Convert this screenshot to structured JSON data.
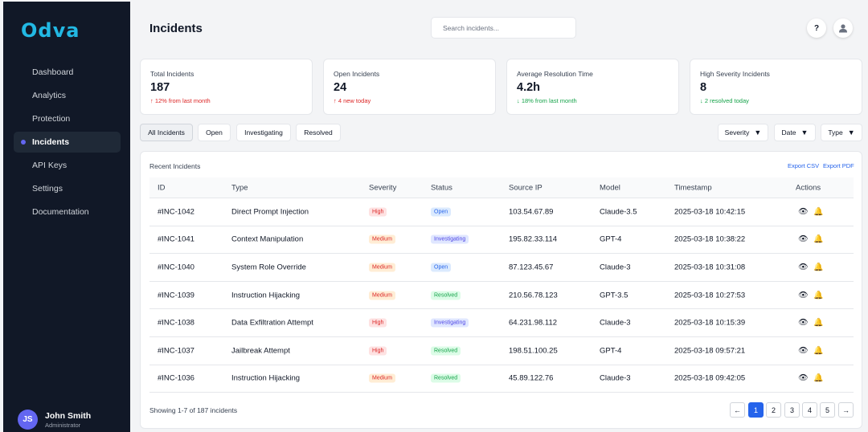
{
  "brand": {
    "logo_text": "Odva"
  },
  "sidebar": {
    "items": [
      {
        "label": "Dashboard"
      },
      {
        "label": "Analytics"
      },
      {
        "label": "Protection"
      },
      {
        "label": "Incidents",
        "active": true
      },
      {
        "label": "API Keys"
      },
      {
        "label": "Settings"
      },
      {
        "label": "Documentation"
      }
    ],
    "user": {
      "initials": "JS",
      "name": "John Smith",
      "role": "Administrator"
    }
  },
  "header": {
    "title": "Incidents",
    "search_placeholder": "Search incidents...",
    "help_label": "?",
    "profile_icon": "user-icon"
  },
  "stats": [
    {
      "label": "Total Incidents",
      "value": "187",
      "trend": "↑ 12% from last month",
      "trend_color": "#dc2626"
    },
    {
      "label": "Open Incidents",
      "value": "24",
      "trend": "↑ 4 new today",
      "trend_color": "#dc2626"
    },
    {
      "label": "Average Resolution Time",
      "value": "4.2h",
      "trend": "↓ 18% from last month",
      "trend_color": "#16a34a"
    },
    {
      "label": "High Severity Incidents",
      "value": "8",
      "trend": "↓ 2 resolved today",
      "trend_color": "#16a34a"
    }
  ],
  "filters": {
    "tabs": [
      {
        "label": "All Incidents",
        "active": true
      },
      {
        "label": "Open"
      },
      {
        "label": "Investigating"
      },
      {
        "label": "Resolved"
      }
    ],
    "dropdowns": [
      {
        "label": "Severity"
      },
      {
        "label": "Date"
      },
      {
        "label": "Type"
      }
    ],
    "caret": "▼"
  },
  "table": {
    "title": "Recent Incidents",
    "export_csv": "Export CSV",
    "export_pdf": "Export PDF",
    "columns": [
      "ID",
      "Type",
      "Severity",
      "Status",
      "Source IP",
      "Model",
      "Timestamp",
      "Actions"
    ],
    "rows": [
      {
        "id": "#INC-1042",
        "type": "Direct Prompt Injection",
        "severity": "High",
        "status": "Open",
        "ip": "103.54.67.89",
        "model": "Claude-3.5",
        "timestamp": "2025-03-18 10:42:15"
      },
      {
        "id": "#INC-1041",
        "type": "Context Manipulation",
        "severity": "Medium",
        "status": "Investigating",
        "ip": "195.82.33.114",
        "model": "GPT-4",
        "timestamp": "2025-03-18 10:38:22"
      },
      {
        "id": "#INC-1040",
        "type": "System Role Override",
        "severity": "Medium",
        "status": "Open",
        "ip": "87.123.45.67",
        "model": "Claude-3",
        "timestamp": "2025-03-18 10:31:08"
      },
      {
        "id": "#INC-1039",
        "type": "Instruction Hijacking",
        "severity": "Medium",
        "status": "Resolved",
        "ip": "210.56.78.123",
        "model": "GPT-3.5",
        "timestamp": "2025-03-18 10:27:53"
      },
      {
        "id": "#INC-1038",
        "type": "Data Exfiltration Attempt",
        "severity": "High",
        "status": "Investigating",
        "ip": "64.231.98.112",
        "model": "Claude-3",
        "timestamp": "2025-03-18 10:15:39"
      },
      {
        "id": "#INC-1037",
        "type": "Jailbreak Attempt",
        "severity": "High",
        "status": "Resolved",
        "ip": "198.51.100.25",
        "model": "GPT-4",
        "timestamp": "2025-03-18 09:57:21"
      },
      {
        "id": "#INC-1036",
        "type": "Instruction Hijacking",
        "severity": "Medium",
        "status": "Resolved",
        "ip": "45.89.122.76",
        "model": "Claude-3",
        "timestamp": "2025-03-18 09:42:05"
      }
    ],
    "actions": {
      "view_icon": "👁",
      "alert_icon": "🔔"
    }
  },
  "pagination": {
    "showing": "Showing 1-7 of 187 incidents",
    "prev": "←",
    "pages": [
      "1",
      "2",
      "3",
      "4",
      "5"
    ],
    "current": "1",
    "next": "→"
  }
}
